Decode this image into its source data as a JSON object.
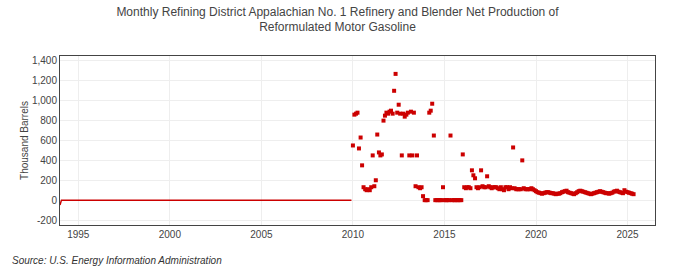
{
  "chart_data": {
    "type": "line",
    "title": "Monthly Refining District Appalachian No. 1 Refinery and Blender Net Production of\nReformulated Motor Gasoline",
    "y_label": "Thousand Barrels",
    "annotations": [
      "Source: U.S. Energy Information Administration"
    ],
    "xlim": [
      1994.0,
      2026.5
    ],
    "ylim": [
      -250,
      1450
    ],
    "xticks": [
      1995,
      2000,
      2005,
      2010,
      2015,
      2020,
      2025
    ],
    "yticks": [
      -200,
      0,
      200,
      400,
      600,
      800,
      {
        "value": 1000,
        "label": "1,000"
      },
      {
        "value": 1200,
        "label": "1,200"
      },
      {
        "value": 1400,
        "label": "1,400"
      }
    ],
    "grid": true,
    "series": [
      {
        "type": "line",
        "color": "#cc0000",
        "x": [
          1994.0,
          1994.08,
          1994.17,
          1994.25,
          1994.33,
          1994.42,
          1994.5,
          1994.58,
          1994.67,
          1994.75,
          1994.83,
          1994.92,
          1995.0,
          1995.08,
          1995.17,
          1995.25,
          1995.33,
          1995.42,
          1995.5,
          1995.58,
          1995.67,
          1995.75,
          1995.83,
          1995.92,
          1996.0,
          1996.08,
          1996.17,
          1996.25,
          1996.33,
          1996.42,
          1996.5,
          1996.58,
          1996.67,
          1996.75,
          1996.83,
          1996.92,
          1997.0,
          1997.08,
          1997.17,
          1997.25,
          1997.33,
          1997.42,
          1997.5,
          1997.58,
          1997.67,
          1997.75,
          1997.83,
          1997.92,
          1998.0,
          1998.08,
          1998.17,
          1998.25,
          1998.33,
          1998.42,
          1998.5,
          1998.58,
          1998.67,
          1998.75,
          1998.83,
          1998.92,
          1999.0,
          1999.08,
          1999.17,
          1999.25,
          1999.33,
          1999.42,
          1999.5,
          1999.58,
          1999.67,
          1999.75,
          1999.83,
          1999.92,
          2000.0,
          2000.08,
          2000.17,
          2000.25,
          2000.33,
          2000.42,
          2000.5,
          2000.58,
          2000.67,
          2000.75,
          2000.83,
          2000.92,
          2001.0,
          2001.08,
          2001.17,
          2001.25,
          2001.33,
          2001.42,
          2001.5,
          2001.58,
          2001.67,
          2001.75,
          2001.83,
          2001.92,
          2002.0,
          2002.08,
          2002.17,
          2002.25,
          2002.33,
          2002.42,
          2002.5,
          2002.58,
          2002.67,
          2002.75,
          2002.83,
          2002.92,
          2003.0,
          2003.08,
          2003.17,
          2003.25,
          2003.33,
          2003.42,
          2003.5,
          2003.58,
          2003.67,
          2003.75,
          2003.83,
          2003.92,
          2004.0,
          2004.08,
          2004.17,
          2004.25,
          2004.33,
          2004.42,
          2004.5,
          2004.58,
          2004.67,
          2004.75,
          2004.83,
          2004.92,
          2005.0,
          2005.08,
          2005.17,
          2005.25,
          2005.33,
          2005.42,
          2005.5,
          2005.58,
          2005.67,
          2005.75,
          2005.83,
          2005.92,
          2006.0,
          2006.08,
          2006.17,
          2006.25,
          2006.33,
          2006.42,
          2006.5,
          2006.58,
          2006.67,
          2006.75,
          2006.83,
          2006.92,
          2007.0,
          2007.08,
          2007.17,
          2007.25,
          2007.33,
          2007.42,
          2007.5,
          2007.58,
          2007.67,
          2007.75,
          2007.83,
          2007.92,
          2008.0,
          2008.08,
          2008.17,
          2008.25,
          2008.33,
          2008.42,
          2008.5,
          2008.58,
          2008.67,
          2008.75,
          2008.83,
          2008.92,
          2009.0,
          2009.08,
          2009.17,
          2009.25,
          2009.33,
          2009.42,
          2009.5,
          2009.58,
          2009.67,
          2009.75,
          2009.83,
          2009.92
        ],
        "values": [
          -50,
          0,
          0,
          0,
          0,
          0,
          0,
          0,
          0,
          0,
          0,
          0,
          0,
          0,
          0,
          0,
          0,
          0,
          0,
          0,
          0,
          0,
          0,
          0,
          0,
          0,
          0,
          0,
          0,
          0,
          0,
          0,
          0,
          0,
          0,
          0,
          0,
          0,
          0,
          0,
          0,
          0,
          0,
          0,
          0,
          0,
          0,
          0,
          0,
          0,
          0,
          0,
          0,
          0,
          0,
          0,
          0,
          0,
          0,
          0,
          0,
          0,
          0,
          0,
          0,
          0,
          0,
          0,
          0,
          0,
          0,
          0,
          0,
          0,
          0,
          0,
          0,
          0,
          0,
          0,
          0,
          0,
          0,
          0,
          0,
          0,
          0,
          0,
          0,
          0,
          0,
          0,
          0,
          0,
          0,
          0,
          0,
          0,
          0,
          0,
          0,
          0,
          0,
          0,
          0,
          0,
          0,
          0,
          0,
          0,
          0,
          0,
          0,
          0,
          0,
          0,
          0,
          0,
          0,
          0,
          0,
          0,
          0,
          0,
          0,
          0,
          0,
          0,
          0,
          0,
          0,
          0,
          0,
          0,
          0,
          0,
          0,
          0,
          0,
          0,
          0,
          0,
          0,
          0,
          0,
          0,
          0,
          0,
          0,
          0,
          0,
          0,
          0,
          0,
          0,
          0,
          0,
          0,
          0,
          0,
          0,
          0,
          0,
          0,
          0,
          0,
          0,
          0,
          0,
          0,
          0,
          0,
          0,
          0,
          0,
          0,
          0,
          0,
          0,
          0,
          0,
          0,
          0,
          0,
          0,
          0,
          0,
          0,
          0,
          0,
          0,
          0
        ]
      },
      {
        "type": "scatter",
        "color": "#cc0000",
        "marker": "square",
        "x": [
          2010.0,
          2010.08,
          2010.17,
          2010.25,
          2010.33,
          2010.42,
          2010.5,
          2010.58,
          2010.67,
          2010.75,
          2010.83,
          2010.92,
          2011.0,
          2011.08,
          2011.17,
          2011.25,
          2011.33,
          2011.42,
          2011.5,
          2011.58,
          2011.67,
          2011.75,
          2011.83,
          2011.92,
          2012.0,
          2012.08,
          2012.17,
          2012.25,
          2012.33,
          2012.42,
          2012.5,
          2012.58,
          2012.67,
          2012.75,
          2012.83,
          2012.92,
          2013.0,
          2013.08,
          2013.17,
          2013.25,
          2013.33,
          2013.42,
          2013.5,
          2013.58,
          2013.67,
          2013.75,
          2013.83,
          2013.92,
          2014.0,
          2014.08,
          2014.17,
          2014.25,
          2014.33,
          2014.42,
          2014.5,
          2014.58,
          2014.67,
          2014.75,
          2014.83,
          2014.92,
          2015.0,
          2015.08,
          2015.17,
          2015.25,
          2015.33,
          2015.42,
          2015.5,
          2015.58,
          2015.67,
          2015.75,
          2015.83,
          2015.92,
          2016.0,
          2016.08,
          2016.17,
          2016.25,
          2016.33,
          2016.42,
          2016.5,
          2016.58,
          2016.67,
          2016.75,
          2016.83,
          2016.92,
          2017.0,
          2017.08,
          2017.17,
          2017.25,
          2017.33,
          2017.42,
          2017.5,
          2017.58,
          2017.67,
          2017.75,
          2017.83,
          2017.92,
          2018.0,
          2018.08,
          2018.17,
          2018.25,
          2018.33,
          2018.42,
          2018.5,
          2018.58,
          2018.67,
          2018.75,
          2018.83,
          2018.92,
          2019.0,
          2019.08,
          2019.17,
          2019.25,
          2019.33,
          2019.42,
          2019.5,
          2019.58,
          2019.67,
          2019.75,
          2019.83,
          2019.92,
          2020.0,
          2020.08,
          2020.17,
          2020.25,
          2020.33,
          2020.42,
          2020.5,
          2020.58,
          2020.67,
          2020.75,
          2020.83,
          2020.92,
          2021.0,
          2021.08,
          2021.17,
          2021.25,
          2021.33,
          2021.42,
          2021.5,
          2021.58,
          2021.67,
          2021.75,
          2021.83,
          2021.92,
          2022.0,
          2022.08,
          2022.17,
          2022.25,
          2022.33,
          2022.42,
          2022.5,
          2022.58,
          2022.67,
          2022.75,
          2022.83,
          2022.92,
          2023.0,
          2023.08,
          2023.17,
          2023.25,
          2023.33,
          2023.42,
          2023.5,
          2023.58,
          2023.67,
          2023.75,
          2023.83,
          2023.92,
          2024.0,
          2024.08,
          2024.17,
          2024.25,
          2024.33,
          2024.42,
          2024.5,
          2024.58,
          2024.67,
          2024.75,
          2024.83,
          2024.92,
          2025.0,
          2025.08,
          2025.17,
          2025.25,
          2025.33
        ],
        "values": [
          550,
          860,
          870,
          880,
          520,
          630,
          350,
          130,
          110,
          100,
          110,
          100,
          130,
          450,
          140,
          200,
          660,
          480,
          450,
          460,
          800,
          850,
          880,
          870,
          890,
          900,
          870,
          1100,
          1270,
          880,
          960,
          870,
          450,
          870,
          840,
          860,
          880,
          450,
          890,
          450,
          880,
          140,
          450,
          130,
          120,
          130,
          40,
          0,
          0,
          0,
          880,
          900,
          970,
          650,
          0,
          0,
          0,
          0,
          0,
          130,
          0,
          0,
          0,
          0,
          650,
          0,
          0,
          0,
          0,
          0,
          0,
          0,
          460,
          130,
          120,
          130,
          130,
          120,
          300,
          250,
          220,
          130,
          120,
          130,
          300,
          140,
          130,
          130,
          240,
          140,
          130,
          120,
          130,
          130,
          130,
          120,
          110,
          130,
          110,
          100,
          130,
          130,
          110,
          130,
          120,
          530,
          120,
          110,
          110,
          110,
          110,
          400,
          120,
          110,
          110,
          110,
          110,
          120,
          110,
          100,
          90,
          80,
          75,
          70,
          65,
          70,
          75,
          80,
          80,
          75,
          70,
          70,
          65,
          60,
          65,
          65,
          70,
          80,
          85,
          90,
          95,
          80,
          75,
          70,
          65,
          60,
          70,
          80,
          90,
          95,
          90,
          85,
          80,
          75,
          70,
          65,
          60,
          65,
          70,
          75,
          80,
          85,
          90,
          85,
          80,
          75,
          70,
          70,
          65,
          70,
          75,
          85,
          90,
          95,
          85,
          80,
          75,
          70,
          100,
          85,
          80,
          75,
          70,
          65,
          60
        ]
      }
    ]
  }
}
